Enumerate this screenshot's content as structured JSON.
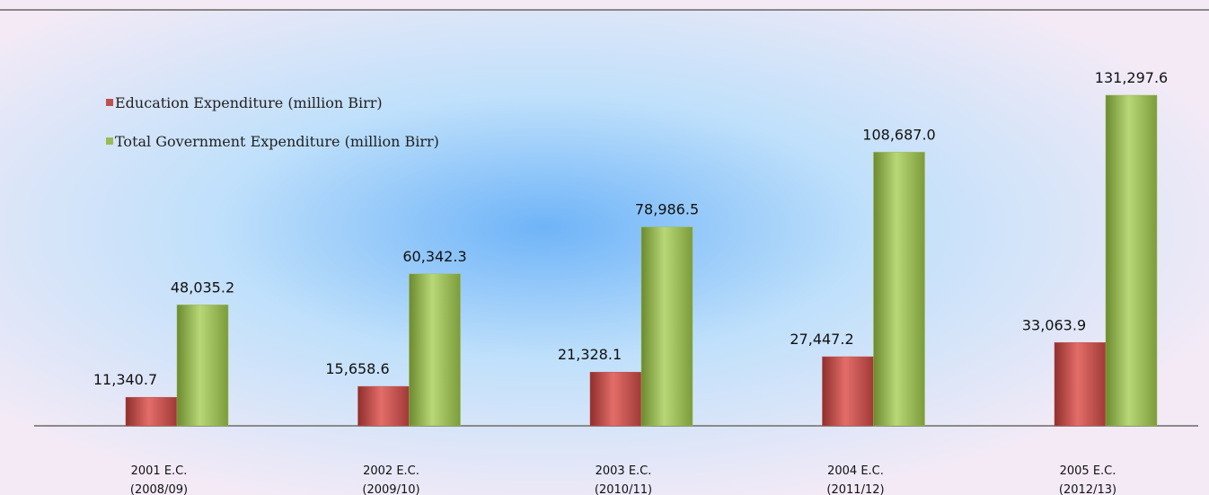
{
  "chart_data": {
    "type": "bar",
    "categories": [
      [
        "2001 E.C.",
        "(2008/09)"
      ],
      [
        "2002 E.C.",
        "(2009/10)"
      ],
      [
        "2003 E.C.",
        "(2010/11)"
      ],
      [
        "2004 E.C.",
        "(2011/12)"
      ],
      [
        "2005 E.C.",
        "(2012/13)"
      ]
    ],
    "series": [
      {
        "name": "Education Expenditure (million Birr)",
        "color": "#c0504d",
        "values": [
          11340.7,
          15658.6,
          21328.1,
          27447.2,
          33063.9
        ],
        "value_labels": [
          "11,340.7",
          "15,658.6",
          "21,328.1",
          "27,447.2",
          "33,063.9"
        ]
      },
      {
        "name": "Total Government Expenditure (million Birr)",
        "color": "#9bbb59",
        "values": [
          48035.2,
          60342.3,
          78986.5,
          108687.0,
          131297.6
        ],
        "value_labels": [
          "48,035.2",
          "60,342.3",
          "78,986.5",
          "108,687.0",
          "131,297.6"
        ]
      }
    ],
    "legend": "top-left"
  }
}
